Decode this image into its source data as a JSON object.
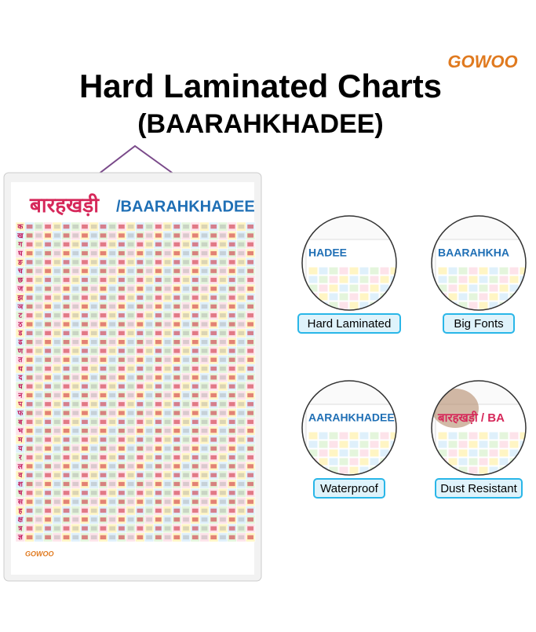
{
  "logo": "GOWOO",
  "header": {
    "title": "Hard Laminated Charts",
    "subtitle": "(BAARAHKHADEE)"
  },
  "poster": {
    "title_hindi": "बारहखड़ी",
    "title_english": "/BAARAHKHADEE",
    "rows": [
      "क",
      "ख",
      "ग",
      "घ",
      "ङ",
      "च",
      "छ",
      "ज",
      "झ",
      "ञ",
      "ट",
      "ठ",
      "ड",
      "ढ",
      "ण",
      "त",
      "थ",
      "द",
      "ध",
      "न",
      "प",
      "फ",
      "ब",
      "भ",
      "म",
      "य",
      "र",
      "ल",
      "व",
      "श",
      "ष",
      "स",
      "ह",
      "क्ष",
      "त्र",
      "ज्ञ"
    ],
    "footer_logo": "GOWOO"
  },
  "features": [
    {
      "label": "Hard Laminated",
      "inset_text": "HADEE"
    },
    {
      "label": "Big Fonts",
      "inset_text": "BAARAHKHA"
    },
    {
      "label": "Waterproof",
      "inset_text": "AARAHKHADEE"
    },
    {
      "label": "Dust Resistant",
      "inset_text": "बारहखड़ी / BA"
    }
  ]
}
